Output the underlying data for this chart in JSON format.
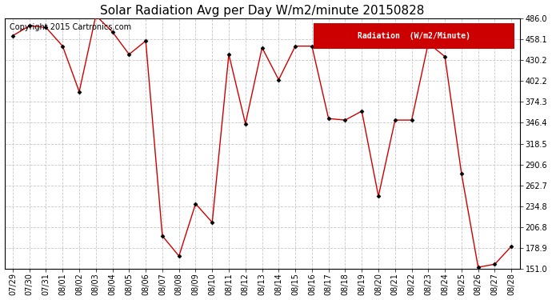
{
  "title": "Solar Radiation Avg per Day W/m2/minute 20150828",
  "copyright_text": "Copyright 2015 Cartronics.com",
  "legend_label": "Radiation  (W/m2/Minute)",
  "x_labels": [
    "07/29",
    "07/30",
    "07/31",
    "08/01",
    "08/02",
    "08/03",
    "08/04",
    "08/05",
    "08/06",
    "08/07",
    "08/08",
    "08/09",
    "08/10",
    "08/11",
    "08/12",
    "08/13",
    "08/14",
    "08/15",
    "08/16",
    "08/17",
    "08/18",
    "08/19",
    "08/20",
    "08/21",
    "08/22",
    "08/23",
    "08/24",
    "08/25",
    "08/26",
    "08/27",
    "08/28"
  ],
  "values": [
    463.0,
    476.0,
    474.0,
    449.0,
    388.0,
    490.0,
    468.0,
    438.0,
    456.0,
    195.0,
    168.0,
    238.0,
    213.0,
    438.0,
    345.0,
    447.0,
    404.0,
    449.0,
    449.0,
    352.0,
    350.0,
    362.0,
    248.0,
    350.0,
    350.0,
    453.0,
    435.0,
    278.0,
    153.0,
    157.0,
    181.0
  ],
  "line_color": "#cc0000",
  "marker_color": "#000000",
  "bg_color": "#ffffff",
  "grid_color": "#c8c8c8",
  "ymin": 151.0,
  "ymax": 486.0,
  "yticks": [
    151.0,
    178.9,
    206.8,
    234.8,
    262.7,
    290.6,
    318.5,
    346.4,
    374.3,
    402.2,
    430.2,
    458.1,
    486.0
  ],
  "title_fontsize": 11,
  "tick_fontsize": 7,
  "copyright_fontsize": 7,
  "legend_fontsize": 7,
  "legend_bg": "#cc0000",
  "legend_text_color": "#ffffff",
  "figwidth": 6.9,
  "figheight": 3.75,
  "dpi": 100
}
